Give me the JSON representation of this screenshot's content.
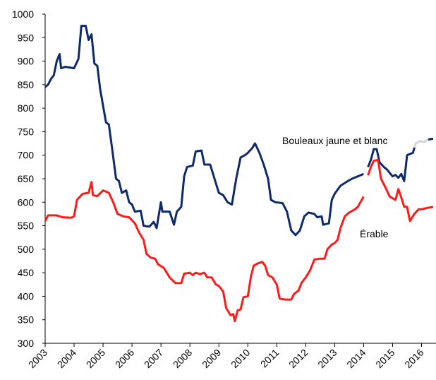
{
  "chart_data": {
    "type": "line",
    "xlim": [
      2003,
      2016.5
    ],
    "xticks": [
      2003,
      2004,
      2005,
      2006,
      2007,
      2008,
      2009,
      2010,
      2011,
      2012,
      2013,
      2014,
      2015,
      2016
    ],
    "ylim": [
      300,
      1000
    ],
    "yticks": [
      300,
      350,
      400,
      450,
      500,
      550,
      600,
      650,
      700,
      750,
      800,
      850,
      900,
      950,
      1000
    ],
    "grid": false,
    "series": [
      {
        "name": "Bouleaux jaune et blanc",
        "color": "#0d2a6b",
        "x": [
          2003.0,
          2003.1,
          2003.2,
          2003.3,
          2003.4,
          2003.5,
          2003.55,
          2003.7,
          2004.0,
          2004.15,
          2004.25,
          2004.4,
          2004.5,
          2004.6,
          2004.7,
          2004.8,
          2004.9,
          2005.0,
          2005.1,
          2005.2,
          2005.3,
          2005.45,
          2005.55,
          2005.65,
          2005.8,
          2005.9,
          2006.0,
          2006.1,
          2006.3,
          2006.4,
          2006.6,
          2006.75,
          2006.85,
          2007.0,
          2007.05,
          2007.3,
          2007.45,
          2007.55,
          2007.7,
          2007.8,
          2007.9,
          2008.1,
          2008.2,
          2008.4,
          2008.5,
          2008.7,
          2008.9,
          2009.0,
          2009.15,
          2009.3,
          2009.45,
          2009.6,
          2009.75,
          2009.9,
          2010.0,
          2010.15,
          2010.25,
          2010.4,
          2010.55,
          2010.7,
          2010.8,
          2010.95,
          2011.2,
          2011.35,
          2011.5,
          2011.65,
          2011.8,
          2011.95,
          2012.1,
          2012.3,
          2012.4,
          2012.55,
          2012.6,
          2012.8,
          2012.9,
          2013.0,
          2013.2,
          2013.4,
          2013.6,
          2013.8,
          2014.0,
          2014.1,
          2014.15,
          2014.25,
          2014.35,
          2014.45,
          2014.55,
          2014.7,
          2014.8,
          2015.0,
          2015.1,
          2015.2,
          2015.3,
          2015.4,
          2015.5,
          2015.7,
          2015.8,
          2015.95,
          2016.1,
          2016.2,
          2016.4
        ],
        "values": [
          845,
          850,
          862,
          870,
          900,
          915,
          885,
          888,
          885,
          905,
          975,
          975,
          945,
          957,
          895,
          890,
          840,
          805,
          770,
          765,
          720,
          650,
          645,
          620,
          625,
          600,
          595,
          580,
          582,
          550,
          548,
          558,
          545,
          600,
          580,
          580,
          552,
          580,
          590,
          655,
          675,
          678,
          708,
          710,
          680,
          680,
          640,
          620,
          615,
          600,
          595,
          650,
          695,
          700,
          705,
          715,
          725,
          705,
          680,
          650,
          605,
          600,
          598,
          580,
          540,
          530,
          540,
          570,
          578,
          575,
          568,
          570,
          552,
          555,
          605,
          618,
          635,
          643,
          650,
          655,
          660,
          null,
          675,
          690,
          713,
          713,
          685,
          675,
          670,
          655,
          658,
          652,
          660,
          645,
          700,
          705,
          725,
          730,
          728,
          733,
          735
        ]
      },
      {
        "name": "Érable",
        "color": "#ff1a1a",
        "x": [
          2003.0,
          2003.1,
          2003.4,
          2003.6,
          2003.9,
          2004.0,
          2004.1,
          2004.3,
          2004.5,
          2004.6,
          2004.65,
          2004.8,
          2005.0,
          2005.2,
          2005.35,
          2005.5,
          2005.7,
          2005.9,
          2006.1,
          2006.25,
          2006.4,
          2006.5,
          2006.65,
          2006.8,
          2006.9,
          2007.1,
          2007.3,
          2007.5,
          2007.7,
          2007.8,
          2008.0,
          2008.1,
          2008.2,
          2008.35,
          2008.5,
          2008.6,
          2008.75,
          2008.9,
          2009.0,
          2009.15,
          2009.25,
          2009.4,
          2009.5,
          2009.55,
          2009.65,
          2009.75,
          2009.85,
          2010.0,
          2010.1,
          2010.2,
          2010.35,
          2010.5,
          2010.6,
          2010.7,
          2010.85,
          2011.0,
          2011.1,
          2011.3,
          2011.5,
          2011.6,
          2011.75,
          2011.85,
          2012.0,
          2012.15,
          2012.3,
          2012.5,
          2012.65,
          2012.75,
          2012.9,
          2013.0,
          2013.1,
          2013.2,
          2013.35,
          2013.5,
          2013.7,
          2013.8,
          2014.0,
          2014.1,
          2014.15,
          2014.25,
          2014.35,
          2014.5,
          2014.6,
          2014.75,
          2014.9,
          2015.1,
          2015.2,
          2015.3,
          2015.4,
          2015.5,
          2015.6,
          2015.75,
          2015.9,
          2016.0,
          2016.2,
          2016.4
        ],
        "values": [
          560,
          572,
          572,
          568,
          567,
          570,
          605,
          618,
          620,
          643,
          615,
          613,
          625,
          620,
          600,
          575,
          570,
          568,
          555,
          535,
          520,
          490,
          482,
          480,
          468,
          460,
          440,
          428,
          428,
          448,
          450,
          445,
          450,
          447,
          450,
          440,
          440,
          425,
          422,
          410,
          375,
          360,
          362,
          347,
          370,
          372,
          398,
          400,
          440,
          465,
          470,
          473,
          465,
          445,
          440,
          425,
          395,
          393,
          393,
          405,
          412,
          428,
          440,
          455,
          478,
          480,
          480,
          500,
          510,
          513,
          520,
          545,
          570,
          578,
          585,
          590,
          612,
          null,
          657,
          675,
          688,
          690,
          650,
          632,
          612,
          605,
          628,
          610,
          590,
          590,
          560,
          575,
          585,
          585,
          588,
          590
        ]
      }
    ]
  }
}
